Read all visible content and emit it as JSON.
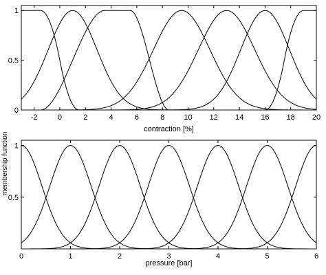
{
  "chart_data": [
    {
      "type": "line",
      "xlabel": "contraction [%]",
      "ylabel": "",
      "xlim": [
        -3,
        20
      ],
      "ylim": [
        0,
        1.05
      ],
      "xticks": [
        "-2",
        "0",
        "2",
        "4",
        "6",
        "8",
        "10",
        "12",
        "14",
        "16",
        "18",
        "20"
      ],
      "yticks": [
        "0",
        "0.5",
        "1"
      ],
      "grid": false,
      "series": [
        {
          "shape": "zmf",
          "params": [
            -1.5,
            1.5
          ],
          "y_at_left_edge": 1.0
        },
        {
          "shape": "gauss",
          "params": [
            1.0,
            1.9
          ],
          "y_at_left_edge": 0.2
        },
        {
          "shape": "trapmf",
          "params": [
            -1.5,
            3.5,
            5.5,
            8.5
          ]
        },
        {
          "shape": "gauss",
          "params": [
            9.5,
            2.2
          ]
        },
        {
          "shape": "gauss",
          "params": [
            13.0,
            2.2
          ]
        },
        {
          "shape": "gauss",
          "params": [
            16.0,
            1.9
          ]
        },
        {
          "shape": "smf",
          "params": [
            16.0,
            19.0
          ]
        }
      ]
    },
    {
      "type": "line",
      "xlabel": "pressure [bar]",
      "ylabel": "membership function",
      "xlim": [
        0,
        6
      ],
      "ylim": [
        0,
        1.05
      ],
      "xticks": [
        "0",
        "1",
        "2",
        "3",
        "4",
        "5",
        "6"
      ],
      "yticks": [
        "0.5",
        "1"
      ],
      "grid": false,
      "series": [
        {
          "shape": "gauss",
          "params": [
            0.0,
            0.42
          ]
        },
        {
          "shape": "gauss",
          "params": [
            1.0,
            0.42
          ]
        },
        {
          "shape": "gauss",
          "params": [
            2.0,
            0.42
          ]
        },
        {
          "shape": "gauss",
          "params": [
            3.0,
            0.42
          ]
        },
        {
          "shape": "gauss",
          "params": [
            4.0,
            0.42
          ]
        },
        {
          "shape": "gauss",
          "params": [
            5.0,
            0.42
          ]
        },
        {
          "shape": "gauss",
          "params": [
            6.0,
            0.42
          ]
        }
      ]
    }
  ]
}
